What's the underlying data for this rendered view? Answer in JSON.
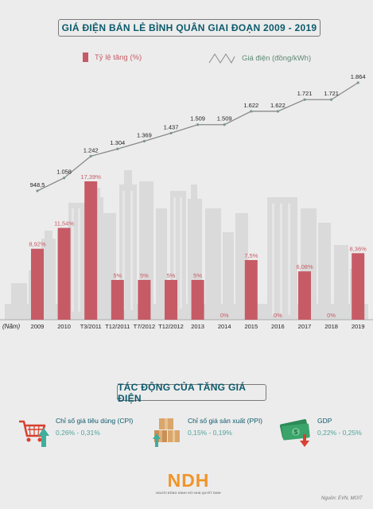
{
  "title": "GIÁ ĐIỆN BÁN LẺ BÌNH QUÂN GIAI ĐOẠN 2009 - 2019",
  "legend": {
    "bar_label": "Tỷ lệ tăng (%)",
    "line_label": "Giá điện (đồng/kWh)"
  },
  "colors": {
    "bar": "#c65b66",
    "line": "#8a8a8a",
    "line_marker": "#7b9a86",
    "title": "#0b5a6b",
    "accent_teal": "#4fa39a"
  },
  "chart_data": {
    "type": "bar",
    "title": "GIÁ ĐIỆN BÁN LẺ BÌNH QUÂN GIAI ĐOẠN 2009 - 2019",
    "xlabel": "(Năm)",
    "ylabel": "",
    "categories": [
      "2009",
      "2010",
      "T3/2011",
      "T12/2011",
      "T7/2012",
      "T12/2012",
      "2013",
      "2014",
      "2015",
      "2016",
      "2017",
      "2018",
      "2019"
    ],
    "series": [
      {
        "name": "Tỷ lệ tăng (%)",
        "type": "bar",
        "values": [
          8.92,
          11.54,
          17.39,
          5,
          5,
          5,
          5,
          0,
          7.5,
          0,
          6.08,
          0,
          8.36
        ],
        "labels": [
          "8,92%",
          "11,54%",
          "17,39%",
          "5%",
          "5%",
          "5%",
          "5%",
          "0%",
          "7,5%",
          "0%",
          "6,08%",
          "0%",
          "8,36%"
        ]
      },
      {
        "name": "Giá điện (đồng/kWh)",
        "type": "line",
        "values": [
          948.5,
          1058,
          1242,
          1304,
          1369,
          1437,
          1509,
          1509,
          1622,
          1622,
          1721,
          1721,
          1864
        ],
        "labels": [
          "948,5",
          "1.058",
          "1.242",
          "1.304",
          "1.369",
          "1.437",
          "1.509",
          "1.509",
          "1.622",
          "1.622",
          "1.721",
          "1.721",
          "1.864"
        ]
      }
    ],
    "ylim": [
      0,
      17.39
    ],
    "line_ylim": [
      948.5,
      1864
    ],
    "grid": false,
    "legend_position": "top"
  },
  "section_title": "TÁC ĐỘNG CỦA TĂNG GIÁ ĐIỆN",
  "impacts": [
    {
      "label": "Chỉ số giá tiêu dùng (CPI)",
      "value": "0,26% - 0,31%",
      "icon": "shopping-cart-icon",
      "direction": "up"
    },
    {
      "label": "Chỉ số giá sản xuất (PPI)",
      "value": "0,15% - 0,19%",
      "icon": "boxes-icon",
      "direction": "up"
    },
    {
      "label": "GDP",
      "value": "0,22% - 0,25%",
      "icon": "money-icon",
      "direction": "down"
    }
  ],
  "logo": {
    "letters": "NDH",
    "tagline": "NGƯỜI ĐỒNG HÀNH VỚI NHÀ QUYẾT ĐỊNH"
  },
  "source": "Nguồn: EVN, MOIT"
}
